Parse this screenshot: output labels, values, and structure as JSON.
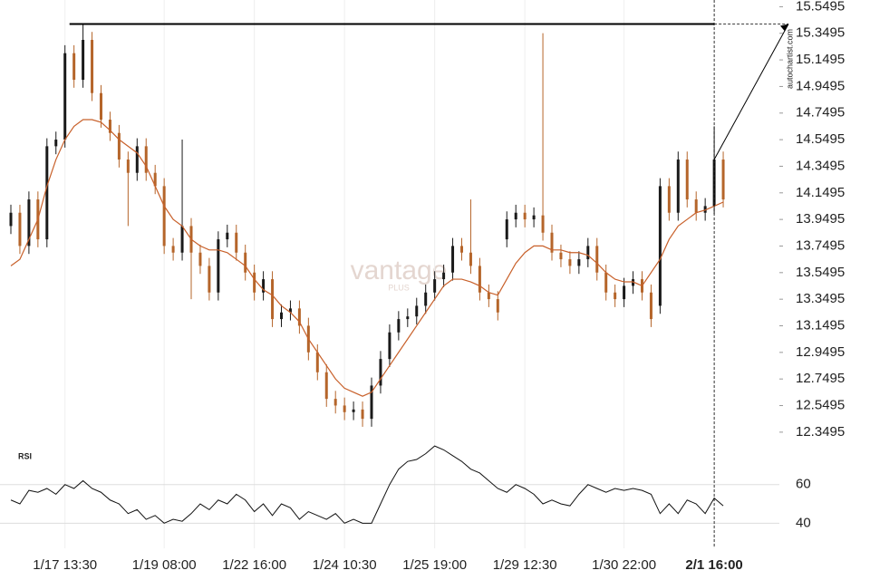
{
  "chart_data": [
    {
      "type": "candlestick",
      "categories": [
        null,
        null,
        null,
        null,
        null,
        null,
        "1/17 13:30",
        null,
        null,
        null,
        null,
        null,
        null,
        null,
        null,
        null,
        null,
        "1/19 08:00",
        null,
        null,
        null,
        null,
        null,
        null,
        null,
        null,
        null,
        "1/22 16:00",
        null,
        null,
        null,
        null,
        null,
        null,
        null,
        null,
        null,
        "1/24 10:30",
        null,
        null,
        null,
        null,
        null,
        null,
        null,
        null,
        null,
        "1/25 19:00",
        null,
        null,
        null,
        null,
        null,
        null,
        null,
        null,
        null,
        "1/29 12:30",
        null,
        null,
        null,
        null,
        null,
        null,
        null,
        null,
        null,
        null,
        "1/30 22:00",
        null,
        null,
        null,
        null,
        null,
        null,
        null,
        null,
        null,
        "2/1 16:00",
        null
      ],
      "open": [
        13.9,
        14.0,
        13.75,
        14.1,
        13.8,
        14.5,
        14.55,
        15.2,
        15.0,
        15.3,
        14.9,
        14.7,
        14.6,
        14.4,
        14.3,
        14.5,
        14.3,
        14.2,
        13.75,
        13.7,
        13.9,
        13.7,
        13.6,
        13.4,
        13.8,
        13.85,
        13.7,
        13.55,
        13.4,
        13.5,
        13.2,
        13.25,
        13.28,
        13.15,
        12.95,
        12.8,
        12.6,
        12.55,
        12.5,
        12.52,
        12.45,
        12.7,
        12.9,
        13.1,
        13.2,
        13.22,
        13.3,
        13.4,
        13.5,
        13.55,
        13.75,
        13.7,
        13.6,
        13.4,
        13.35,
        13.8,
        13.95,
        14.0,
        13.95,
        13.98,
        13.85,
        13.7,
        13.65,
        13.6,
        13.65,
        13.75,
        13.55,
        13.4,
        13.35,
        13.45,
        13.5,
        13.4,
        13.3,
        14.2,
        14.0,
        14.4,
        14.1,
        14.0,
        14.05,
        14.4
      ],
      "high": [
        14.06,
        14.06,
        14.16,
        14.16,
        14.56,
        14.61,
        15.26,
        15.26,
        15.42,
        15.36,
        14.96,
        14.76,
        14.66,
        14.46,
        14.56,
        14.56,
        14.36,
        14.26,
        13.81,
        14.55,
        13.96,
        13.76,
        13.66,
        13.86,
        13.91,
        13.91,
        13.76,
        13.61,
        13.56,
        13.56,
        13.31,
        13.34,
        13.34,
        13.21,
        13.01,
        12.86,
        12.66,
        12.61,
        12.58,
        12.58,
        12.76,
        12.96,
        13.16,
        13.26,
        13.28,
        13.36,
        13.46,
        13.56,
        13.61,
        13.81,
        13.81,
        14.1,
        13.66,
        13.46,
        13.41,
        14.01,
        14.06,
        14.06,
        14.04,
        15.35,
        13.91,
        13.76,
        13.71,
        13.71,
        13.81,
        13.81,
        13.61,
        13.46,
        13.51,
        13.56,
        13.56,
        13.46,
        14.26,
        14.26,
        14.46,
        14.46,
        14.16,
        14.11,
        14.65,
        14.46
      ],
      "low": [
        13.84,
        13.69,
        13.69,
        13.74,
        13.74,
        14.44,
        14.49,
        14.94,
        14.94,
        14.84,
        14.64,
        14.54,
        14.34,
        13.9,
        14.24,
        14.24,
        14.14,
        13.69,
        13.64,
        13.64,
        13.35,
        13.54,
        13.34,
        13.34,
        13.74,
        13.64,
        13.49,
        13.34,
        13.34,
        13.14,
        13.14,
        13.19,
        13.09,
        12.89,
        12.74,
        12.54,
        12.49,
        12.44,
        12.44,
        12.39,
        12.39,
        12.64,
        12.84,
        13.04,
        13.14,
        13.16,
        13.24,
        13.34,
        13.44,
        13.49,
        13.64,
        13.54,
        13.34,
        13.29,
        13.19,
        13.74,
        13.89,
        13.89,
        13.89,
        13.79,
        13.64,
        13.59,
        13.54,
        13.54,
        13.59,
        13.49,
        13.34,
        13.29,
        13.29,
        13.39,
        13.34,
        13.14,
        13.24,
        13.94,
        13.94,
        14.04,
        13.94,
        13.94,
        13.99,
        14.04
      ],
      "close": [
        14.0,
        13.75,
        14.1,
        13.8,
        14.5,
        14.55,
        15.2,
        15.0,
        15.3,
        14.9,
        14.7,
        14.6,
        14.4,
        14.3,
        14.5,
        14.3,
        14.2,
        13.75,
        13.7,
        13.9,
        13.7,
        13.6,
        13.4,
        13.8,
        13.85,
        13.7,
        13.55,
        13.4,
        13.5,
        13.2,
        13.25,
        13.28,
        13.15,
        12.95,
        12.8,
        12.6,
        12.55,
        12.5,
        12.52,
        12.45,
        12.7,
        12.9,
        13.1,
        13.2,
        13.22,
        13.3,
        13.4,
        13.5,
        13.55,
        13.75,
        13.7,
        13.6,
        13.4,
        13.35,
        13.25,
        13.95,
        14.0,
        13.95,
        13.98,
        13.85,
        13.7,
        13.65,
        13.6,
        13.65,
        13.75,
        13.55,
        13.4,
        13.35,
        13.45,
        13.5,
        13.4,
        13.2,
        14.2,
        14.0,
        14.4,
        14.1,
        14.0,
        14.05,
        14.4,
        14.1
      ],
      "up_color": "#1a1a1a",
      "down_color": "#b5652a",
      "moving_average": {
        "color": "#c8602a",
        "values": [
          13.6,
          13.65,
          13.8,
          13.95,
          14.2,
          14.4,
          14.55,
          14.65,
          14.7,
          14.7,
          14.68,
          14.62,
          14.55,
          14.5,
          14.45,
          14.35,
          14.2,
          14.05,
          13.95,
          13.9,
          13.8,
          13.75,
          13.72,
          13.72,
          13.7,
          13.65,
          13.6,
          13.5,
          13.42,
          13.38,
          13.3,
          13.25,
          13.18,
          13.05,
          12.95,
          12.85,
          12.75,
          12.68,
          12.65,
          12.62,
          12.65,
          12.75,
          12.85,
          12.95,
          13.05,
          13.15,
          13.25,
          13.35,
          13.45,
          13.5,
          13.5,
          13.48,
          13.45,
          13.4,
          13.38,
          13.5,
          13.62,
          13.7,
          13.75,
          13.75,
          13.72,
          13.72,
          13.7,
          13.7,
          13.68,
          13.62,
          13.55,
          13.5,
          13.48,
          13.48,
          13.45,
          13.55,
          13.65,
          13.8,
          13.9,
          13.95,
          14.0,
          14.02,
          14.05,
          14.08
        ]
      },
      "level": 15.4195,
      "ylim": [
        12.26,
        15.6
      ],
      "yticks": [
        15.5495,
        15.3495,
        15.1495,
        14.9495,
        14.7495,
        14.5495,
        14.3495,
        14.1495,
        13.9495,
        13.7495,
        13.5495,
        13.3495,
        13.1495,
        12.9495,
        12.7495,
        12.5495,
        12.3495
      ],
      "watermark": "vantage",
      "watermark_sub": "PLUS",
      "source": "autochartist.com"
    },
    {
      "type": "line",
      "title": "RSI",
      "color": "#111111",
      "values": [
        52,
        50,
        57,
        56,
        58,
        55,
        60,
        58,
        62,
        58,
        56,
        52,
        50,
        45,
        47,
        42,
        44,
        40,
        42,
        41,
        45,
        50,
        47,
        52,
        50,
        55,
        52,
        46,
        50,
        44,
        50,
        48,
        42,
        46,
        44,
        42,
        45,
        40,
        42,
        40,
        40,
        50,
        60,
        68,
        72,
        73,
        76,
        80,
        78,
        75,
        72,
        68,
        66,
        62,
        58,
        56,
        60,
        58,
        55,
        50,
        52,
        50,
        49,
        55,
        60,
        58,
        56,
        58,
        57,
        58,
        57,
        55,
        45,
        50,
        45,
        52,
        50,
        45,
        53,
        49
      ],
      "ylim": [
        27,
        81
      ],
      "yticks": [
        60,
        40
      ],
      "grid": true
    }
  ]
}
